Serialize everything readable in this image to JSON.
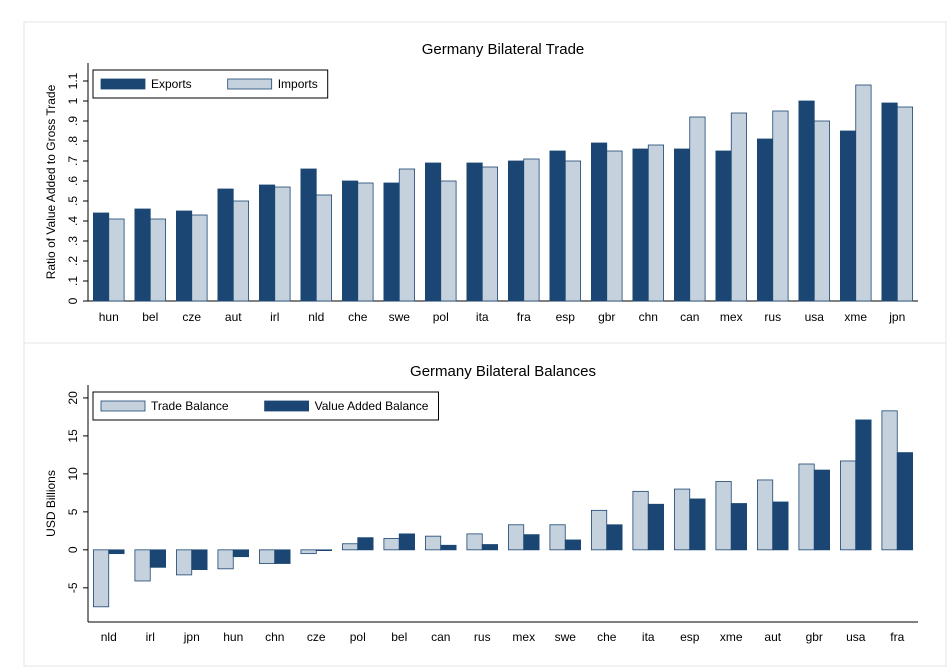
{
  "chart_data": [
    {
      "type": "bar",
      "title": "Germany Bilateral Trade",
      "y_label": "Ratio of Value Added to Gross Trade",
      "categories": [
        "hun",
        "bel",
        "cze",
        "aut",
        "irl",
        "nld",
        "che",
        "swe",
        "pol",
        "ita",
        "fra",
        "esp",
        "gbr",
        "chn",
        "can",
        "mex",
        "rus",
        "usa",
        "xme",
        "jpn"
      ],
      "series": [
        {
          "name": "Exports",
          "color": "#1b4673",
          "values": [
            0.44,
            0.46,
            0.45,
            0.56,
            0.58,
            0.66,
            0.6,
            0.59,
            0.69,
            0.69,
            0.7,
            0.75,
            0.79,
            0.76,
            0.76,
            0.75,
            0.81,
            1.0,
            0.85,
            0.99
          ]
        },
        {
          "name": "Imports",
          "color": "#c5d1dd",
          "values": [
            0.41,
            0.41,
            0.43,
            0.5,
            0.57,
            0.53,
            0.59,
            0.66,
            0.6,
            0.67,
            0.71,
            0.7,
            0.75,
            0.78,
            0.92,
            0.94,
            0.95,
            0.9,
            1.08,
            0.97
          ]
        }
      ],
      "ylim": [
        0,
        1.19
      ],
      "yticks": [
        0,
        {
          "value": 0.1,
          "label": ".1"
        },
        {
          "value": 0.2,
          "label": ".2"
        },
        {
          "value": 0.3,
          "label": ".3"
        },
        {
          "value": 0.4,
          "label": ".4"
        },
        {
          "value": 0.5,
          "label": ".5"
        },
        {
          "value": 0.6,
          "label": ".6"
        },
        {
          "value": 0.7,
          "label": ".7"
        },
        {
          "value": 0.8,
          "label": ".8"
        },
        {
          "value": 0.9,
          "label": ".9"
        },
        1,
        1.1
      ],
      "grid": false,
      "legend": "top-left"
    },
    {
      "type": "bar",
      "title": "Germany Bilateral Balances",
      "y_label": "USD Billions",
      "categories": [
        "nld",
        "irl",
        "jpn",
        "hun",
        "chn",
        "cze",
        "pol",
        "bel",
        "can",
        "rus",
        "mex",
        "swe",
        "che",
        "ita",
        "esp",
        "xme",
        "aut",
        "gbr",
        "usa",
        "fra"
      ],
      "series": [
        {
          "name": "Trade Balance",
          "color": "#c5d1dd",
          "values": [
            -7.5,
            -4.1,
            -3.3,
            -2.5,
            -1.8,
            -0.5,
            0.8,
            1.5,
            1.8,
            2.1,
            3.3,
            3.3,
            5.2,
            7.7,
            8.0,
            9.0,
            9.2,
            11.3,
            11.7,
            18.3
          ]
        },
        {
          "name": "Value Added Balance",
          "color": "#1b4673",
          "values": [
            -0.5,
            -2.3,
            -2.6,
            -0.9,
            -1.8,
            -0.1,
            1.6,
            2.1,
            0.6,
            0.7,
            2.0,
            1.3,
            3.3,
            6.0,
            6.7,
            6.1,
            6.3,
            10.5,
            17.1,
            12.8
          ]
        }
      ],
      "ylim": [
        -9.5,
        21.7
      ],
      "yticks": [
        -5,
        0,
        5,
        10,
        15,
        20
      ],
      "grid": false,
      "legend": "top-left"
    }
  ]
}
